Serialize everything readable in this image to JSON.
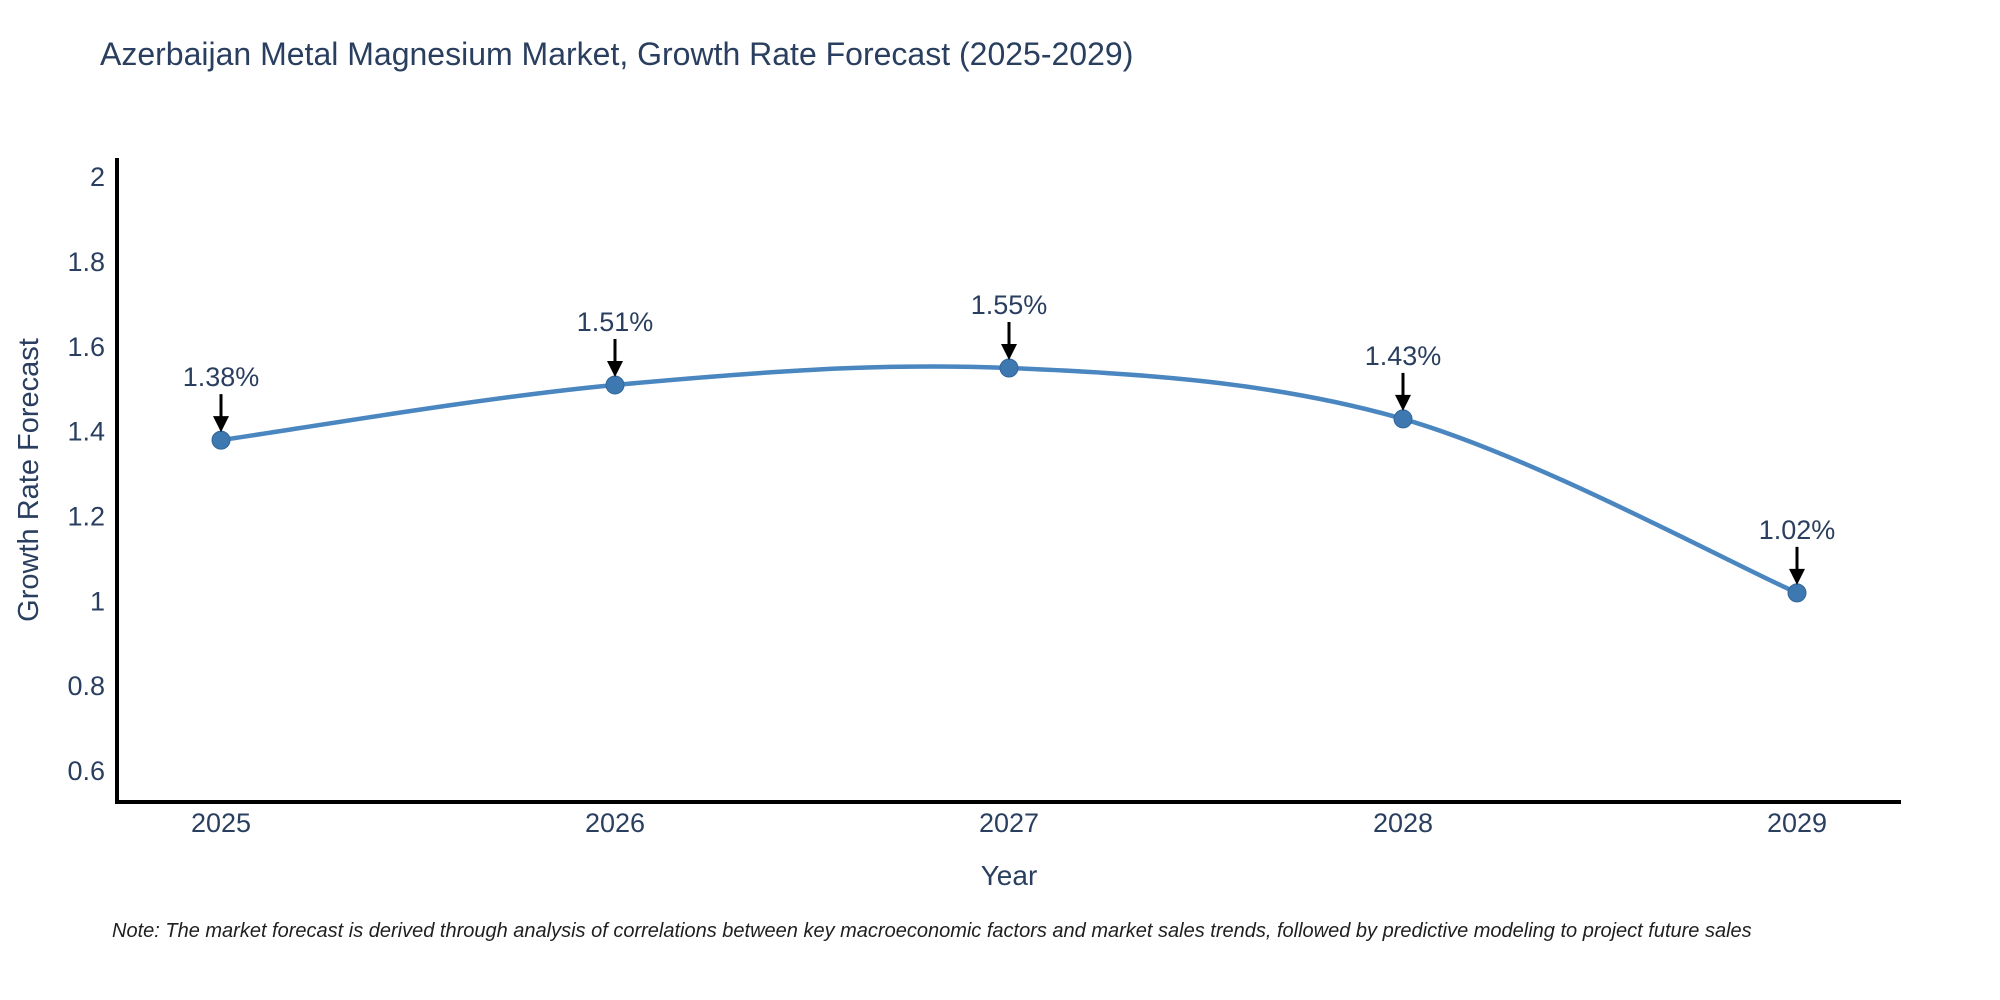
{
  "title": "Azerbaijan Metal Magnesium Market, Growth Rate Forecast (2025-2029)",
  "note": "Note: The market forecast is derived through analysis of correlations between key macroeconomic factors and market sales trends, followed by predictive modeling to project future sales",
  "chart_data": {
    "type": "line",
    "x": [
      2025,
      2026,
      2027,
      2028,
      2029
    ],
    "y": [
      1.38,
      1.51,
      1.55,
      1.43,
      1.02
    ],
    "point_labels": [
      "1.38%",
      "1.51%",
      "1.55%",
      "1.43%",
      "1.02%"
    ],
    "xtick_labels": [
      "2025",
      "2026",
      "2027",
      "2028",
      "2029"
    ],
    "yticks": [
      0.6,
      0.8,
      1,
      1.2,
      1.4,
      1.6,
      1.8,
      2
    ],
    "ytick_labels": [
      "0.6",
      "0.8",
      "1",
      "1.2",
      "1.4",
      "1.6",
      "1.8",
      "2"
    ],
    "xlabel": "Year",
    "ylabel": "Growth Rate Forecast",
    "ylim": [
      0.527,
      2.045
    ],
    "grid": false,
    "legend": "none",
    "line_color": "#4a86bf",
    "marker_color": "#3d78b0",
    "marker_edge_color": "#336699",
    "axis_color": "#000000",
    "text_color": "#2a3f5f",
    "annotation_color": "#2a3f5f",
    "arrow_color": "#000000"
  }
}
